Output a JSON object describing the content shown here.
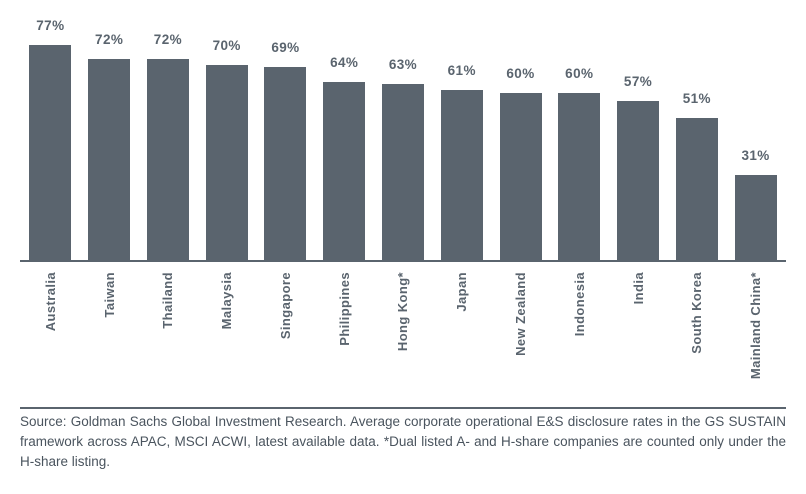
{
  "chart_data": {
    "type": "bar",
    "categories": [
      "Australia",
      "Taiwan",
      "Thailand",
      "Malaysia",
      "Singapore",
      "Philippines",
      "Hong Kong*",
      "Japan",
      "New Zealand",
      "Indonesia",
      "India",
      "South Korea",
      "Mainland China*"
    ],
    "values": [
      77,
      72,
      72,
      70,
      69,
      64,
      63,
      61,
      60,
      60,
      57,
      51,
      31
    ],
    "value_labels": [
      "77%",
      "72%",
      "72%",
      "70%",
      "69%",
      "64%",
      "63%",
      "61%",
      "60%",
      "60%",
      "57%",
      "51%",
      "31%"
    ],
    "title": "",
    "xlabel": "",
    "ylabel": "",
    "ylim": [
      0,
      80
    ],
    "grid": false,
    "legend": false,
    "bar_color": "#5a646e",
    "label_color": "#5a646e",
    "axis_line_color": "#5a646e"
  },
  "footer": {
    "source_text": "Source: Goldman Sachs Global Investment Research. Average corporate operational E&S disclosure rates in the GS SUSTAIN framework across APAC, MSCI ACWI, latest available data. *Dual listed A- and H-share companies are counted only under the H-share listing.",
    "text_color": "#4a545e"
  }
}
